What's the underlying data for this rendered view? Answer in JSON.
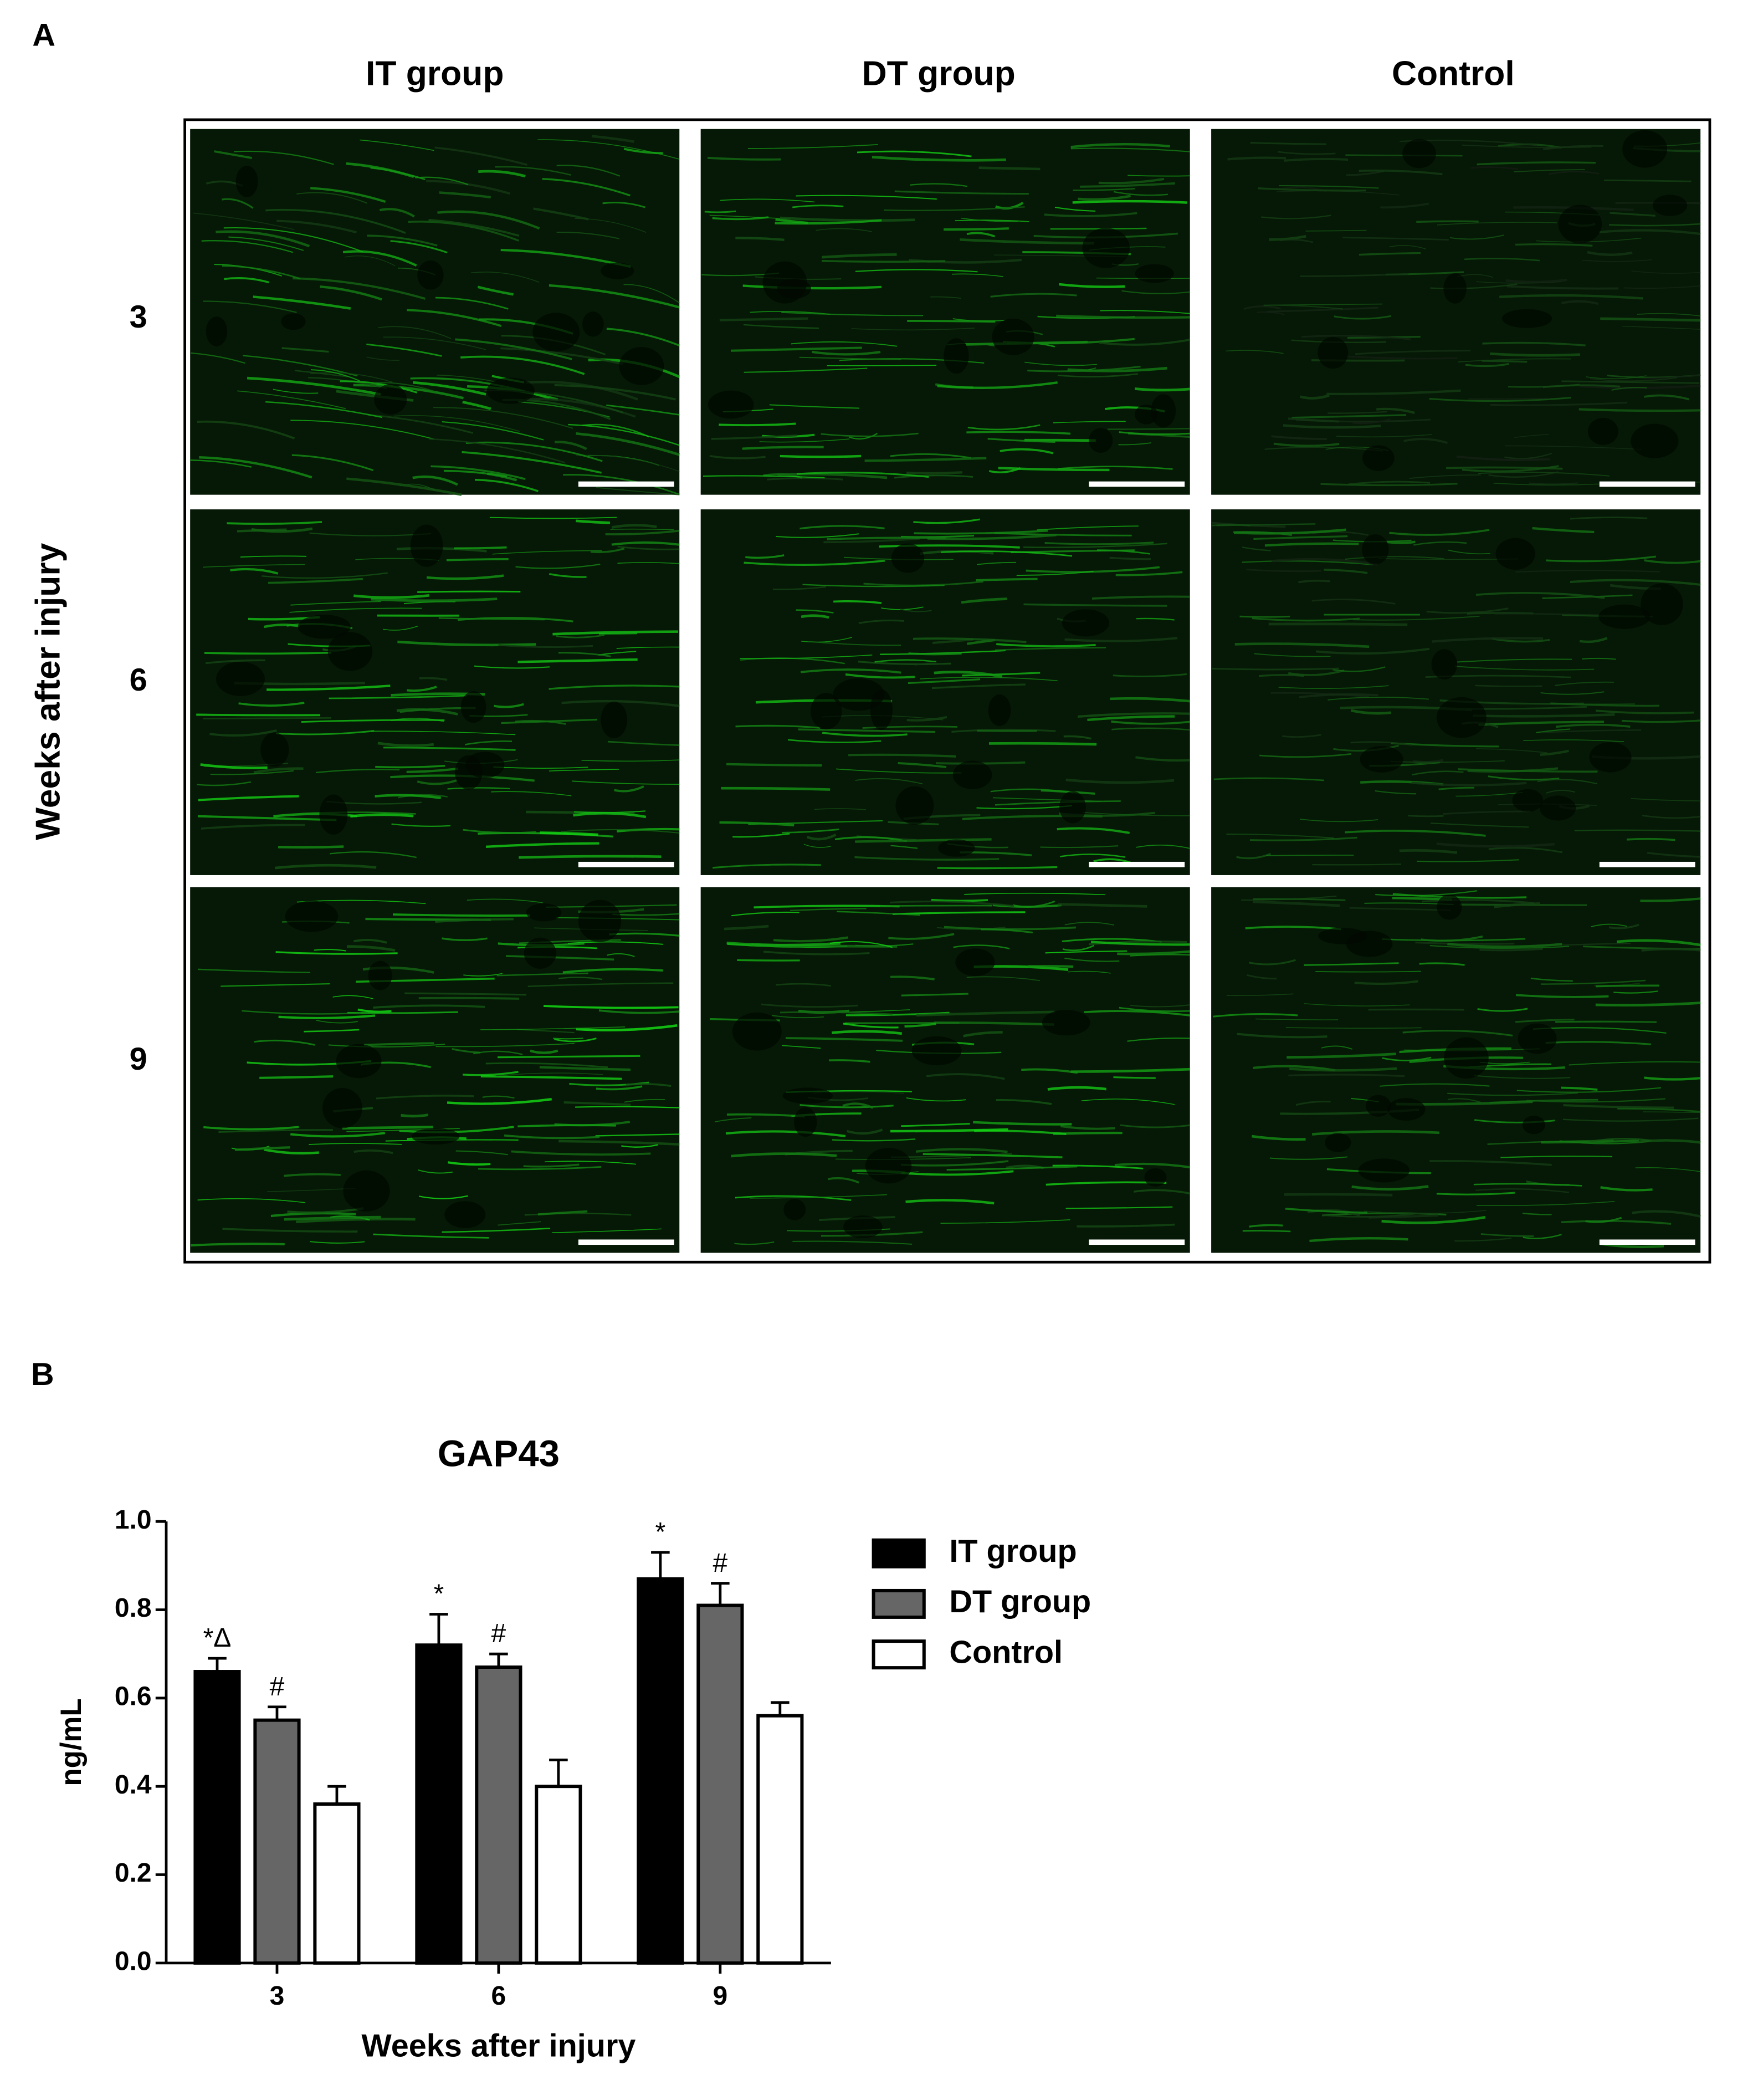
{
  "panel_a": {
    "label": "A",
    "columns": [
      "IT group",
      "DT group",
      "Control"
    ],
    "row_axis_label": "Weeks after injury",
    "rows": [
      "3",
      "6",
      "9"
    ]
  },
  "chart_data": {
    "type": "bar",
    "panel_label": "B",
    "title": "GAP43",
    "y_label": "ng/mL",
    "x_label": "Weeks after injury",
    "categories": [
      "3",
      "6",
      "9"
    ],
    "series": [
      {
        "name": "IT group",
        "color": "#000000",
        "values": [
          0.66,
          0.72,
          0.87
        ],
        "errors": [
          0.03,
          0.07,
          0.06
        ],
        "annotations": [
          "*Δ",
          "*",
          "*"
        ]
      },
      {
        "name": "DT group",
        "color": "#666666",
        "values": [
          0.55,
          0.67,
          0.81
        ],
        "errors": [
          0.03,
          0.03,
          0.05
        ],
        "annotations": [
          "#",
          "#",
          "#"
        ]
      },
      {
        "name": "Control",
        "color": "#ffffff",
        "values": [
          0.36,
          0.4,
          0.56
        ],
        "errors": [
          0.04,
          0.06,
          0.03
        ]
      }
    ],
    "ylim": [
      0,
      1
    ],
    "yticks": [
      {
        "value": 0,
        "label": "0.0"
      },
      0.2,
      0.4,
      0.6,
      0.8,
      {
        "value": 1,
        "label": "1.0"
      }
    ],
    "legend": "right"
  }
}
